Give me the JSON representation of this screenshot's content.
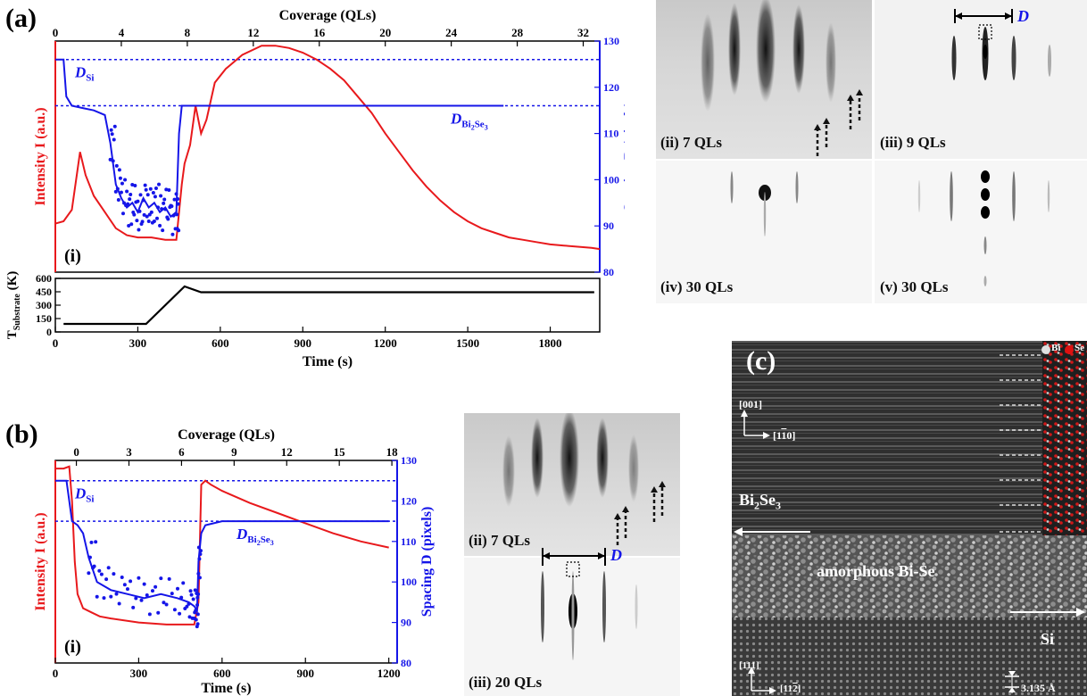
{
  "panels": {
    "a": {
      "label": "(a)"
    },
    "b": {
      "label": "(b)"
    },
    "c": {
      "label": "(c)"
    }
  },
  "chart_data": [
    {
      "id": "a-main",
      "type": "line",
      "xlabel": "Time (s)",
      "top_xlabel": "Coverage (QLs)",
      "ylabel_left": "Intensity I (a.u.)",
      "ylabel_right": "Spacing D (pixels)",
      "xlim": [
        0,
        1980
      ],
      "top_xlim": [
        0,
        33
      ],
      "y_right_lim": [
        80,
        130
      ],
      "top_ticks": [
        0,
        4,
        8,
        12,
        16,
        20,
        24,
        28,
        32
      ],
      "right_ticks": [
        80,
        90,
        100,
        110,
        120,
        130
      ],
      "panel_tag": "(i)",
      "annotations": {
        "d_si": "D",
        "d_si_sub": "Si",
        "d_bise": "D",
        "d_bise_sub": "Bi",
        "d_bise_sub2": "2",
        "d_bise_sub3": "Se",
        "d_bise_sub4": "3"
      },
      "reference_lines": [
        126,
        116
      ],
      "series": [
        {
          "color": "#e8191c",
          "x": [
            0,
            30,
            60,
            90,
            110,
            140,
            180,
            220,
            260,
            300,
            350,
            400,
            440,
            460,
            470,
            490,
            510,
            530,
            550,
            580,
            620,
            680,
            750,
            800,
            850,
            900,
            950,
            1000,
            1050,
            1100,
            1150,
            1200,
            1250,
            1300,
            1350,
            1400,
            1450,
            1500,
            1550,
            1600,
            1650,
            1700,
            1750,
            1800,
            1850,
            1900,
            1950,
            1980
          ],
          "values": [
            0.21,
            0.22,
            0.27,
            0.52,
            0.42,
            0.33,
            0.26,
            0.19,
            0.16,
            0.15,
            0.15,
            0.14,
            0.14,
            0.38,
            0.47,
            0.55,
            0.72,
            0.6,
            0.66,
            0.82,
            0.88,
            0.94,
            0.98,
            0.98,
            0.97,
            0.95,
            0.92,
            0.88,
            0.83,
            0.76,
            0.69,
            0.6,
            0.52,
            0.44,
            0.37,
            0.31,
            0.26,
            0.22,
            0.19,
            0.17,
            0.15,
            0.14,
            0.13,
            0.12,
            0.115,
            0.11,
            0.105,
            0.1
          ]
        },
        {
          "color": "#1515e8",
          "x": [
            0,
            30,
            40,
            60,
            100,
            140,
            180,
            200,
            220,
            240,
            260,
            280,
            300,
            320,
            340,
            360,
            380,
            400,
            420,
            440,
            450,
            460,
            470,
            600,
            800,
            1000,
            1200,
            1400,
            1630
          ],
          "values": [
            126,
            126,
            118,
            116,
            115.5,
            115,
            114,
            108,
            99,
            96,
            94,
            95,
            93,
            96,
            94,
            95,
            93,
            94,
            92,
            93,
            110,
            116,
            116,
            116,
            116,
            116,
            116,
            116,
            116
          ]
        }
      ]
    },
    {
      "id": "a-temp",
      "type": "line",
      "xlabel": "Time (s)",
      "ylabel": "T",
      "ylabel_sub": "Substrate",
      "ylabel_unit": " (K)",
      "xlim": [
        0,
        1980
      ],
      "ylim": [
        0,
        600
      ],
      "x_ticks": [
        0,
        300,
        600,
        900,
        1200,
        1500,
        1800
      ],
      "y_ticks": [
        0,
        150,
        300,
        450,
        600
      ],
      "series": [
        {
          "color": "#000000",
          "x": [
            30,
            330,
            470,
            530,
            1960
          ],
          "values": [
            90,
            90,
            510,
            445,
            445
          ]
        }
      ]
    },
    {
      "id": "b-main",
      "type": "line",
      "xlabel": "Time (s)",
      "top_xlabel": "Coverage (QLs)",
      "ylabel_left": "Intensity I (a.u.)",
      "ylabel_right": "Spacing D (pixels)",
      "xlim": [
        0,
        1230
      ],
      "top_xlim": [
        -1.2,
        18.3
      ],
      "y_right_lim": [
        80,
        130
      ],
      "x_ticks": [
        0,
        300,
        600,
        900,
        1200
      ],
      "top_ticks": [
        0,
        3,
        6,
        9,
        12,
        15,
        18
      ],
      "right_ticks": [
        80,
        90,
        100,
        110,
        120,
        130
      ],
      "panel_tag": "(i)",
      "annotations": {
        "d_si": "D",
        "d_si_sub": "Si",
        "d_bise": "D",
        "d_bise_sub": "Bi",
        "d_bise_sub2": "2",
        "d_bise_sub3": "Se",
        "d_bise_sub4": "3"
      },
      "reference_lines": [
        125,
        115
      ],
      "series": [
        {
          "color": "#e8191c",
          "x": [
            0,
            30,
            50,
            60,
            70,
            80,
            100,
            130,
            160,
            200,
            300,
            400,
            500,
            515,
            525,
            540,
            560,
            600,
            700,
            800,
            900,
            1000,
            1100,
            1200
          ],
          "values": [
            0.96,
            0.96,
            0.97,
            0.8,
            0.5,
            0.34,
            0.27,
            0.25,
            0.23,
            0.22,
            0.2,
            0.19,
            0.19,
            0.3,
            0.88,
            0.9,
            0.88,
            0.85,
            0.79,
            0.74,
            0.69,
            0.64,
            0.6,
            0.57
          ]
        },
        {
          "color": "#1515e8",
          "x": [
            0,
            40,
            50,
            60,
            80,
            100,
            120,
            150,
            200,
            260,
            320,
            380,
            440,
            480,
            500,
            510,
            515,
            525,
            540,
            600,
            800,
            1000,
            1200
          ],
          "values": [
            125,
            125,
            120,
            115,
            114,
            112,
            106,
            100,
            98,
            97,
            96,
            97,
            96,
            95,
            94,
            93,
            105,
            112,
            114,
            115,
            115,
            115,
            115
          ]
        }
      ]
    }
  ],
  "rheed_a": {
    "ii": "(ii) 7 QLs",
    "iii": "(iii) 9 QLs",
    "iv": "(iv) 30 QLs",
    "v": "(v) 30 QLs",
    "d_label": "D"
  },
  "rheed_b": {
    "ii": "(ii) 7 QLs",
    "iii": "(iii) 20 QLs",
    "d_label": "D"
  },
  "tem": {
    "legend_bi": "Bi",
    "legend_se": "Se",
    "dir_001": "[001]",
    "dir_1-10_a": "[1",
    "dir_1-10_b": "1",
    "dir_1-10_c": "0]",
    "material": "Bi",
    "material_sub": "2",
    "material_tail": "Se",
    "material_sub2": "3",
    "amorphous": "amorphous Bi-Se",
    "si": "Si",
    "dir_111": "[111]",
    "dir_112_a": "[11",
    "dir_112_b": "2",
    "dir_112_c": "]",
    "spacing": "3.135 Å",
    "colors": {
      "bi": "#dddddd",
      "se": "#e01010"
    }
  }
}
